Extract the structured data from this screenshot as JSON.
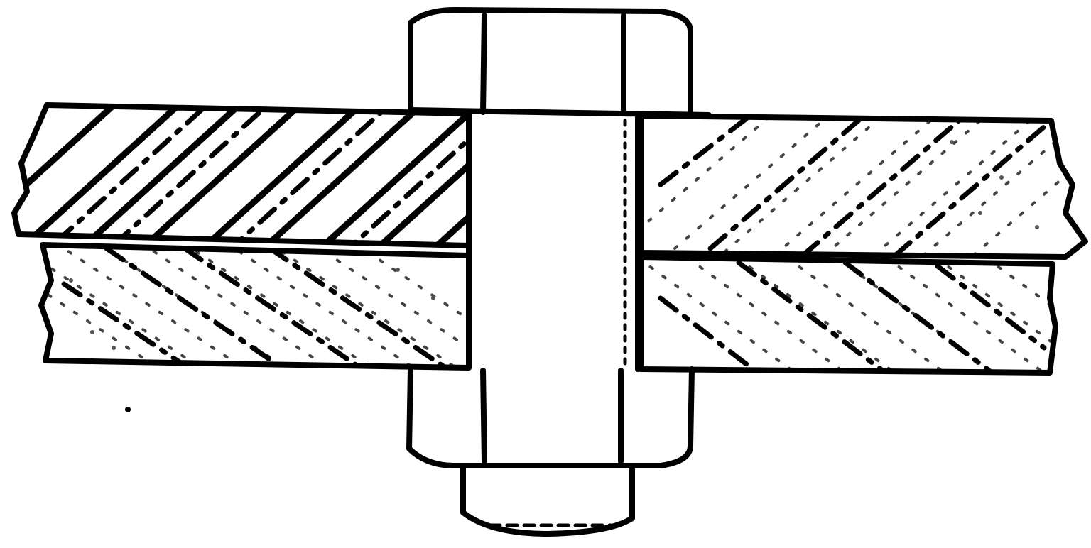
{
  "colors": {
    "ink": "#000000",
    "paper": "#ffffff",
    "grain": "#444444"
  },
  "parts": [
    "bolt-head",
    "plate-upper-left",
    "plate-upper-right",
    "plate-lower-left",
    "plate-lower-right",
    "bolt-shank",
    "nut",
    "bolt-end"
  ]
}
